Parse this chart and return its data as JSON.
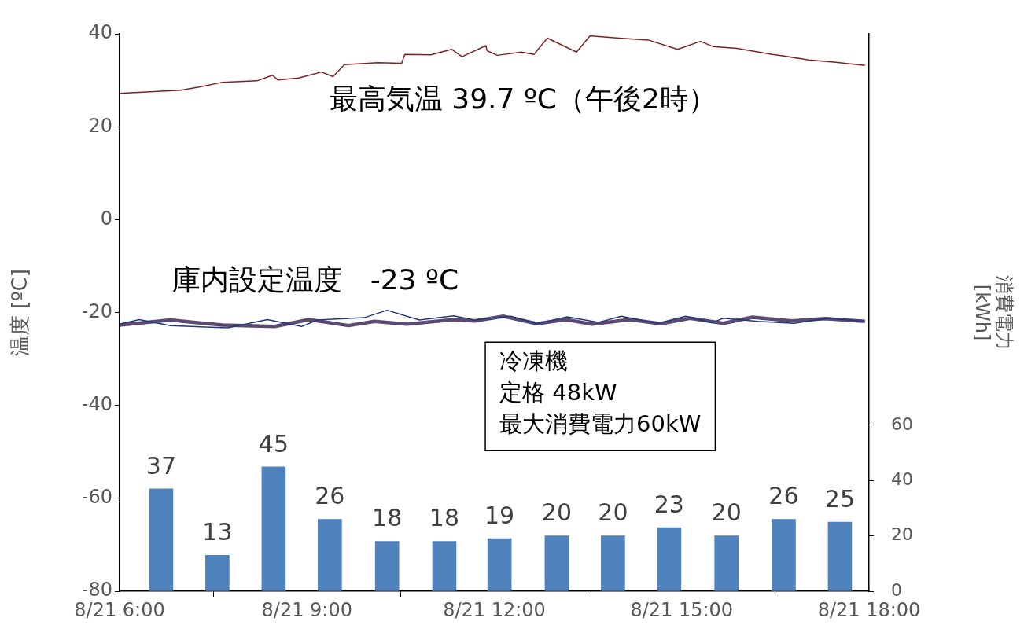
{
  "chart_data": {
    "type": "line",
    "ylabel": "温度 [ºC]",
    "y2label": "消費電力 [kWh]",
    "xlim": [
      "--08-21T06:00",
      "--08-21T18:00"
    ],
    "xticks": [
      {
        "value": "--08-21T06:00",
        "label": "8/21 6:00"
      },
      {
        "value": "--08-21T09:00",
        "label": "8/21 9:00"
      },
      {
        "value": "--08-21T12:00",
        "label": "8/21 12:00"
      },
      {
        "value": "--08-21T15:00",
        "label": "8/21 15:00"
      },
      {
        "value": "--08-21T18:00",
        "label": "8/21 18:00"
      }
    ],
    "ylim": [
      -80,
      40
    ],
    "yticks": [
      -80,
      -60,
      -40,
      -20,
      0,
      20,
      40
    ],
    "y2lim": [
      0,
      201.5
    ],
    "y2ticks": [
      0,
      20,
      40,
      60
    ],
    "grid": false,
    "legend": false,
    "marker": "none",
    "line_style": "solid",
    "annotations": [
      "最高気温 39.7 ºC（午後2時）",
      "庫内設定温度　-23 ºC",
      "冷凍機",
      "定格 48kW",
      "最大消費電力60kW"
    ],
    "series": [
      {
        "color": "#7b2323",
        "x": [
          "--08-21T06:00",
          "--08-21T06:59",
          "--08-21T07:22",
          "--08-21T07:39",
          "--08-21T08:12",
          "--08-21T08:27",
          "--08-21T08:32",
          "--08-21T08:52",
          "--08-21T09:14",
          "--08-21T09:25",
          "--08-21T09:36",
          "--08-21T10:08",
          "--08-21T10:31",
          "--08-21T10:34",
          "--08-21T10:59",
          "--08-21T11:19",
          "--08-21T11:29",
          "--08-21T11:52",
          "--08-21T11:53",
          "--08-21T12:03",
          "--08-21T12:26",
          "--08-21T12:38",
          "--08-21T12:51",
          "--08-21T13:19",
          "--08-21T13:32",
          "--08-21T14:00",
          "--08-21T14:28",
          "--08-21T14:56",
          "--08-21T15:18",
          "--08-21T15:30",
          "--08-21T15:53",
          "--08-21T16:27",
          "--08-21T16:37",
          "--08-21T17:02",
          "--08-21T17:28",
          "--08-21T17:56"
        ],
        "values": [
          27.2,
          27.9,
          28.8,
          29.6,
          29.9,
          31.1,
          30.1,
          30.5,
          31.8,
          30.8,
          33.4,
          33.8,
          33.7,
          35.6,
          35.5,
          36.7,
          35.1,
          37.5,
          36.4,
          35.4,
          36.1,
          35.6,
          39.1,
          36.1,
          39.6,
          39.1,
          38.7,
          36.7,
          38.4,
          37.3,
          36.9,
          35.6,
          35.3,
          34.4,
          33.9,
          33.2
        ]
      },
      {
        "color": "#1f3a7a",
        "x": [
          "--08-21T06:00",
          "--08-21T06:19",
          "--08-21T06:49",
          "--08-21T07:44",
          "--08-21T08:22",
          "--08-21T08:55",
          "--08-21T09:10",
          "--08-21T09:55",
          "--08-21T10:17",
          "--08-21T10:48",
          "--08-21T11:21",
          "--08-21T11:41",
          "--08-21T12:16",
          "--08-21T12:41",
          "--08-21T13:10",
          "--08-21T13:40",
          "--08-21T14:02",
          "--08-21T14:37",
          "--08-21T15:04",
          "--08-21T15:29",
          "--08-21T15:40",
          "--08-21T16:13",
          "--08-21T16:48",
          "--08-21T17:20",
          "--08-21T17:56"
        ],
        "values": [
          -22.5,
          -21.5,
          -22.8,
          -23.3,
          -21.5,
          -23.0,
          -21.6,
          -21.1,
          -19.5,
          -21.6,
          -20.7,
          -21.6,
          -20.8,
          -22.4,
          -20.9,
          -22.1,
          -20.8,
          -22.3,
          -20.8,
          -22.2,
          -21.2,
          -21.9,
          -22.3,
          -21.2,
          -21.9
        ]
      },
      {
        "color": "#5c4a72",
        "x": [
          "--08-21T06:00",
          "--08-21T06:49",
          "--08-21T07:39",
          "--08-21T08:29",
          "--08-21T09:02",
          "--08-21T09:40",
          "--08-21T10:05",
          "--08-21T10:36",
          "--08-21T11:21",
          "--08-21T11:41",
          "--08-21T12:09",
          "--08-21T12:41",
          "--08-21T13:09",
          "--08-21T13:34",
          "--08-21T14:10",
          "--08-21T14:40",
          "--08-21T15:08",
          "--08-21T15:40",
          "--08-21T16:08",
          "--08-21T16:46",
          "--08-21T17:18",
          "--08-21T17:56"
        ],
        "values": [
          -22.7,
          -21.6,
          -22.7,
          -23.0,
          -21.5,
          -22.8,
          -21.9,
          -22.5,
          -21.5,
          -21.8,
          -20.8,
          -22.4,
          -21.5,
          -22.5,
          -21.5,
          -22.4,
          -21.2,
          -22.3,
          -21.0,
          -21.8,
          -21.3,
          -21.9
        ]
      },
      {
        "type": "bar",
        "axis": "y2",
        "color": "#4f81bd",
        "x": [
          "--08-21T06:40",
          "--08-21T07:34",
          "--08-21T08:28",
          "--08-21T09:22",
          "--08-21T10:17",
          "--08-21T11:12",
          "--08-21T12:05",
          "--08-21T13:00",
          "--08-21T13:54",
          "--08-21T14:48",
          "--08-21T15:43",
          "--08-21T16:38",
          "--08-21T17:32"
        ],
        "values": [
          37,
          13,
          45,
          26,
          18,
          18,
          19,
          20,
          20,
          23,
          20,
          26,
          25
        ],
        "value_labels": [
          "37",
          "13",
          "45",
          "26",
          "18",
          "18",
          "19",
          "20",
          "20",
          "23",
          "20",
          "26",
          "25"
        ]
      }
    ]
  }
}
